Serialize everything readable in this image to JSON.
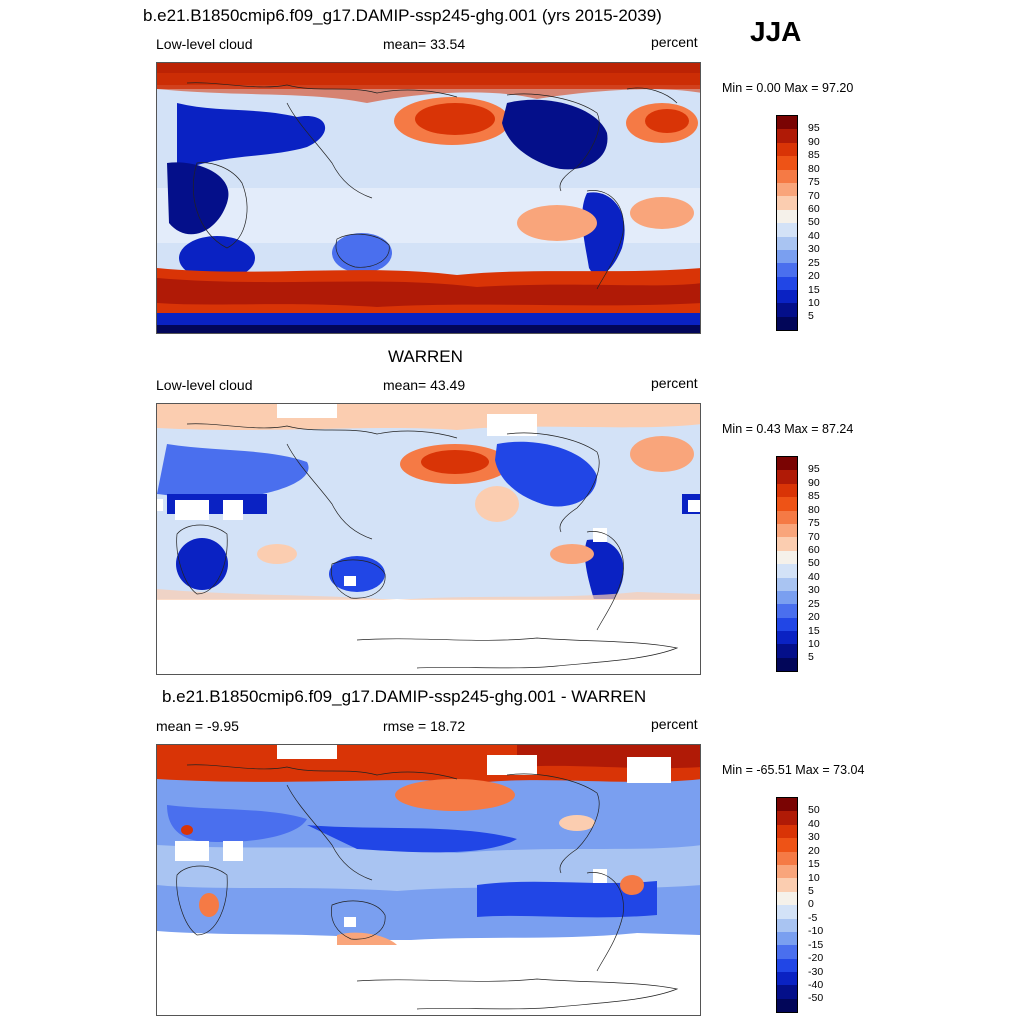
{
  "season": "JJA",
  "panels": [
    {
      "title": "b.e21.B1850cmip6.f09_g17.DAMIP-ssp245-ghg.001 (yrs 2015-2039)",
      "left_label": "Low-level cloud",
      "center_label": "mean=  33.54",
      "right_label": "percent",
      "minmax": "Min =   0.00 Max =  97.20",
      "colorbar_labels": [
        "95",
        "90",
        "85",
        "80",
        "75",
        "70",
        "60",
        "50",
        "40",
        "30",
        "25",
        "20",
        "15",
        "10",
        "5"
      ]
    },
    {
      "title": "WARREN",
      "left_label": "Low-level cloud",
      "center_label": "mean=  43.49",
      "right_label": "percent",
      "minmax": "Min =   0.43 Max =  87.24",
      "colorbar_labels": [
        "95",
        "90",
        "85",
        "80",
        "75",
        "70",
        "60",
        "50",
        "40",
        "30",
        "25",
        "20",
        "15",
        "10",
        "5"
      ]
    },
    {
      "title": "b.e21.B1850cmip6.f09_g17.DAMIP-ssp245-ghg.001 - WARREN",
      "left_label": "mean =  -9.95",
      "center_label": "rmse =  18.72",
      "right_label": "percent",
      "minmax": "Min = -65.51 Max =  73.04",
      "colorbar_labels": [
        "50",
        "40",
        "30",
        "20",
        "15",
        "10",
        "5",
        "0",
        "-5",
        "-10",
        "-15",
        "-20",
        "-30",
        "-40",
        "-50"
      ]
    }
  ],
  "colorscale": [
    "#7a0403",
    "#b01a06",
    "#d93406",
    "#ee5316",
    "#f57a45",
    "#f9a57b",
    "#fbcdb0",
    "#f5f1ea",
    "#d3e2f7",
    "#a9c4f2",
    "#7a9ff0",
    "#4a6fee",
    "#2146e6",
    "#0a22c3",
    "#040f8a",
    "#020659"
  ]
}
